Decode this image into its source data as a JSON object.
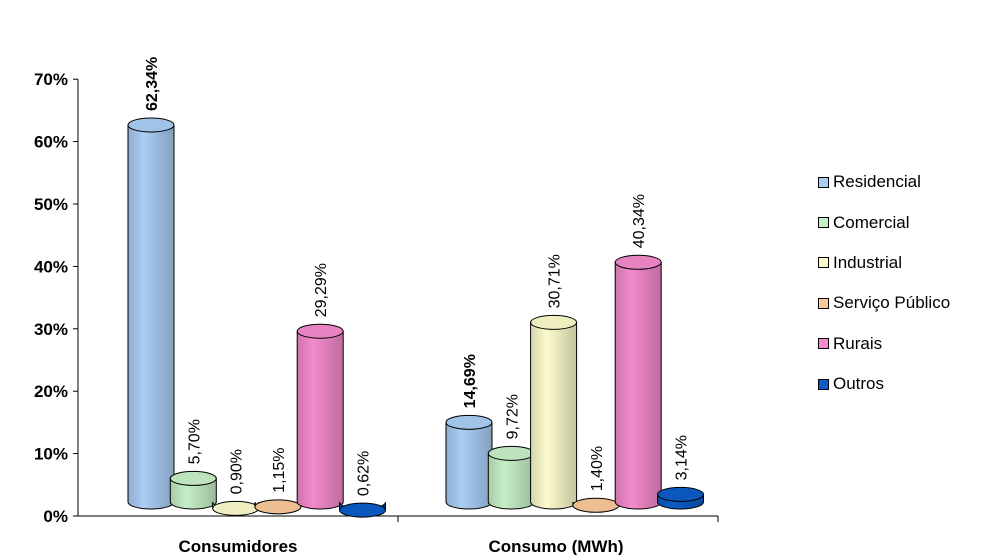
{
  "chart_data": {
    "type": "bar",
    "style": "3d-cylinder",
    "categories": [
      "Consumidores",
      "Consumo (MWh)"
    ],
    "series": [
      {
        "name": "Residencial",
        "color": "#a9cdf4",
        "values": [
          62.34,
          14.69
        ],
        "labels": [
          "62,34%",
          "14,69%"
        ],
        "bold_labels": [
          true,
          true
        ]
      },
      {
        "name": "Comercial",
        "color": "#c6efc6",
        "values": [
          5.7,
          9.72
        ],
        "labels": [
          "5,70%",
          "9,72%"
        ],
        "bold_labels": [
          false,
          false
        ]
      },
      {
        "name": "Industrial",
        "color": "#fbfbcb",
        "values": [
          0.9,
          30.71
        ],
        "labels": [
          "0,90%",
          "30,71%"
        ],
        "bold_labels": [
          false,
          false
        ]
      },
      {
        "name": "Serviço Público",
        "color": "#f8c89a",
        "values": [
          1.15,
          1.4
        ],
        "labels": [
          "1,15%",
          "1,40%"
        ],
        "bold_labels": [
          false,
          false
        ]
      },
      {
        "name": "Rurais",
        "color": "#f38acb",
        "values": [
          29.29,
          40.34
        ],
        "labels": [
          "29,29%",
          "40,34%"
        ],
        "bold_labels": [
          false,
          false
        ]
      },
      {
        "name": "Outros",
        "color": "#0a5cc8",
        "values": [
          0.62,
          3.14
        ],
        "labels": [
          "0,62%",
          "3,14%"
        ],
        "bold_labels": [
          false,
          false
        ]
      }
    ],
    "y_ticks": [
      "0%",
      "10%",
      "20%",
      "30%",
      "40%",
      "50%",
      "60%",
      "70%"
    ],
    "ylim": [
      0,
      70
    ],
    "grid": false,
    "legend_position": "right"
  }
}
